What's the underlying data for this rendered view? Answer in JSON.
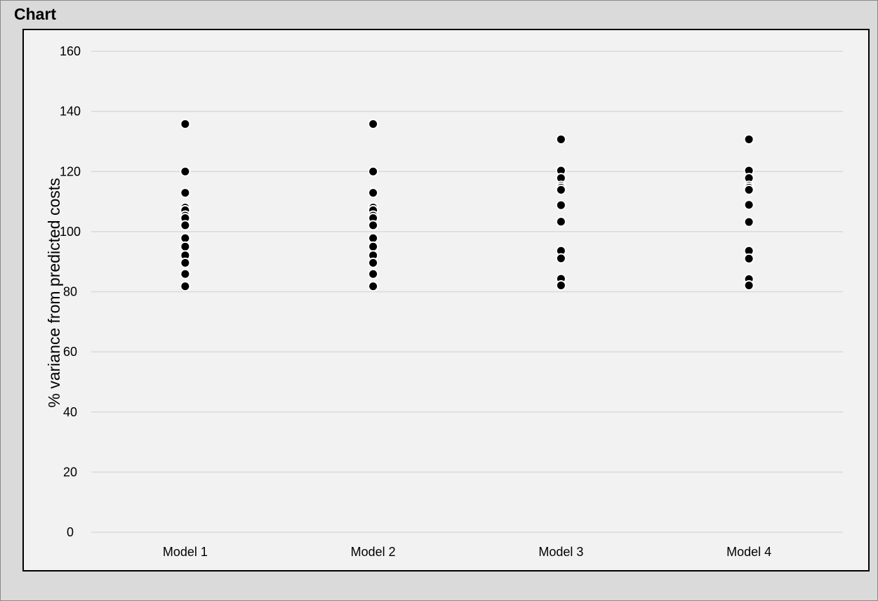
{
  "window": {
    "title": "Chart"
  },
  "chart_data": {
    "type": "scatter",
    "title": "",
    "xlabel": "",
    "ylabel": "% variance from predicted costs",
    "categories": [
      "Model 1",
      "Model 2",
      "Model 3",
      "Model 4"
    ],
    "ylim": [
      0,
      160
    ],
    "yticks": [
      "0",
      "20",
      "40",
      "60",
      "80",
      "100",
      "120",
      "140",
      "160"
    ],
    "grid": true,
    "legend": "none",
    "colors": {
      "background": "#f2f2f2",
      "grid": "#d9d9d9",
      "marker": "#000000",
      "marker_edge": "#ffffff"
    },
    "series": [
      {
        "category": "Model 1",
        "values": [
          135.8,
          120.0,
          112.9,
          108.0,
          107.1,
          105.3,
          104.5,
          102.1,
          97.8,
          95.0,
          92.1,
          89.6,
          85.9,
          81.8
        ]
      },
      {
        "category": "Model 2",
        "values": [
          135.8,
          120.0,
          112.9,
          108.0,
          107.1,
          105.3,
          104.5,
          102.1,
          97.8,
          95.0,
          92.1,
          89.6,
          85.9,
          81.8
        ]
      },
      {
        "category": "Model 3",
        "values": [
          130.7,
          120.3,
          117.8,
          115.2,
          114.6,
          113.9,
          108.8,
          103.3,
          93.6,
          91.1,
          84.3,
          82.1
        ]
      },
      {
        "category": "Model 4",
        "values": [
          130.7,
          120.3,
          117.8,
          115.2,
          114.6,
          113.9,
          108.9,
          103.2,
          93.6,
          91.0,
          84.2,
          82.1
        ]
      }
    ]
  }
}
